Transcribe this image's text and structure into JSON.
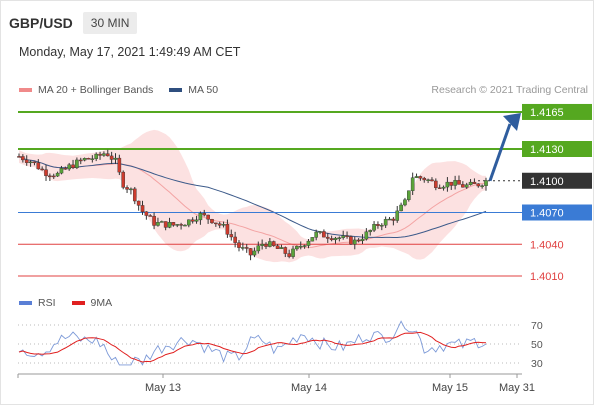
{
  "header": {
    "pair": "GBP/USD",
    "timeframe": "30 MIN"
  },
  "timestamp": "Monday, May 17, 2021 1:49:49 AM CET",
  "legend_top": [
    {
      "label": "MA 20 + Bollinger Bands",
      "color": "#f08a8a"
    },
    {
      "label": "MA 50",
      "color": "#2f4f7f"
    }
  ],
  "source": "Research © 2021 Trading Central",
  "legend_bottom": [
    {
      "label": "RSI",
      "color": "#5a7fd6"
    },
    {
      "label": "9MA",
      "color": "#e02020"
    }
  ],
  "chart_data": [
    {
      "type": "candlestick",
      "title": "GBP/USD",
      "timeframe": "30 MIN",
      "x_ticks": [
        "May 13",
        "May 14",
        "May 15",
        "May 31"
      ],
      "y_range": [
        1.4,
        1.418
      ],
      "current_price": "1.4100",
      "levels": [
        {
          "label": "1.4165",
          "value": 1.4165,
          "color": "#55a820",
          "style": "resistance"
        },
        {
          "label": "1.4130",
          "value": 1.413,
          "color": "#55a820",
          "style": "resistance"
        },
        {
          "label": "1.4100",
          "value": 1.41,
          "color": "#333333",
          "style": "last-price"
        },
        {
          "label": "1.4070",
          "value": 1.407,
          "color": "#3a7bd5",
          "style": "pivot"
        },
        {
          "label": "1.4040",
          "value": 1.404,
          "color": "#e04040",
          "style": "support"
        },
        {
          "label": "1.4010",
          "value": 1.401,
          "color": "#e04040",
          "style": "support"
        }
      ],
      "projection": {
        "from": 1.41,
        "to": 1.4165,
        "color": "#2f5d9e"
      },
      "indicators": [
        "MA 20 + Bollinger Bands",
        "MA 50"
      ]
    },
    {
      "type": "line",
      "series": [
        {
          "name": "RSI"
        },
        {
          "name": "9MA"
        }
      ],
      "y_ticks": [
        "70",
        "50",
        "30"
      ],
      "y_range": [
        20,
        80
      ]
    }
  ]
}
